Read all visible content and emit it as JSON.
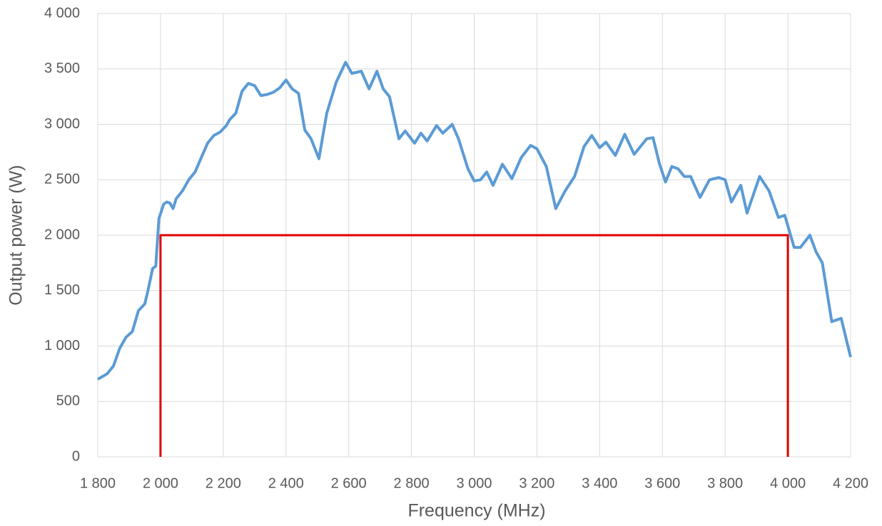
{
  "chart_data": {
    "type": "line",
    "xlabel": "Frequency (MHz)",
    "ylabel": "Output power (W)",
    "xlim": [
      1800,
      4200
    ],
    "xticks": [
      {
        "value": 1800,
        "label": "1 800"
      },
      {
        "value": 2000,
        "label": "2 000"
      },
      {
        "value": 2200,
        "label": "2 200"
      },
      {
        "value": 2400,
        "label": "2 400"
      },
      {
        "value": 2600,
        "label": "2 600"
      },
      {
        "value": 2800,
        "label": "2 800"
      },
      {
        "value": 3000,
        "label": "3 000"
      },
      {
        "value": 3200,
        "label": "3 200"
      },
      {
        "value": 3400,
        "label": "3 400"
      },
      {
        "value": 3600,
        "label": "3 600"
      },
      {
        "value": 3800,
        "label": "3 800"
      },
      {
        "value": 4000,
        "label": "4 000"
      },
      {
        "value": 4200,
        "label": "4 200"
      }
    ],
    "ylim": [
      0,
      4000
    ],
    "yticks": [
      0,
      500,
      {
        "value": 1000,
        "label": "1 000"
      },
      {
        "value": 1500,
        "label": "1 500"
      },
      {
        "value": 2000,
        "label": "2 000"
      },
      {
        "value": 2500,
        "label": "2 500"
      },
      {
        "value": 3000,
        "label": "3 000"
      },
      {
        "value": 3500,
        "label": "3 500"
      },
      {
        "value": 4000,
        "label": "4 000"
      }
    ],
    "grid": true,
    "series": [
      {
        "color": "#5b9bd5",
        "x": [
          1800,
          1830,
          1850,
          1870,
          1890,
          1910,
          1930,
          1950,
          1960,
          1975,
          1985,
          1995,
          2010,
          2020,
          2030,
          2040,
          2050,
          2070,
          2090,
          2110,
          2130,
          2150,
          2170,
          2190,
          2210,
          2220,
          2240,
          2260,
          2280,
          2300,
          2320,
          2340,
          2360,
          2380,
          2400,
          2420,
          2440,
          2460,
          2480,
          2505,
          2530,
          2560,
          2590,
          2610,
          2640,
          2665,
          2690,
          2710,
          2730,
          2760,
          2780,
          2810,
          2830,
          2850,
          2880,
          2900,
          2930,
          2950,
          2980,
          3000,
          3020,
          3040,
          3060,
          3090,
          3120,
          3150,
          3180,
          3200,
          3230,
          3260,
          3290,
          3320,
          3350,
          3375,
          3400,
          3420,
          3450,
          3480,
          3510,
          3550,
          3570,
          3590,
          3610,
          3630,
          3650,
          3670,
          3690,
          3720,
          3750,
          3780,
          3800,
          3820,
          3850,
          3870,
          3910,
          3940,
          3970,
          3990,
          4020,
          4040,
          4070,
          4090,
          4110,
          4140,
          4170,
          4200
        ],
        "values": [
          700,
          750,
          820,
          980,
          1080,
          1130,
          1320,
          1380,
          1500,
          1700,
          1720,
          2150,
          2280,
          2300,
          2290,
          2240,
          2330,
          2400,
          2500,
          2570,
          2700,
          2830,
          2900,
          2930,
          2990,
          3040,
          3100,
          3300,
          3370,
          3350,
          3260,
          3270,
          3290,
          3330,
          3400,
          3320,
          3280,
          2950,
          2870,
          2690,
          3100,
          3380,
          3560,
          3460,
          3480,
          3320,
          3480,
          3320,
          3250,
          2870,
          2940,
          2830,
          2920,
          2850,
          2990,
          2920,
          3000,
          2870,
          2600,
          2490,
          2500,
          2570,
          2450,
          2640,
          2510,
          2700,
          2810,
          2780,
          2620,
          2240,
          2400,
          2530,
          2800,
          2900,
          2790,
          2840,
          2720,
          2910,
          2730,
          2870,
          2880,
          2650,
          2480,
          2620,
          2600,
          2530,
          2530,
          2340,
          2500,
          2520,
          2500,
          2300,
          2450,
          2200,
          2530,
          2400,
          2160,
          2180,
          1890,
          1890,
          2000,
          1850,
          1750,
          1220,
          1250,
          900
        ]
      },
      {
        "color": "#e00000",
        "x": [
          2000,
          2000,
          4000,
          4000
        ],
        "values": [
          0,
          2000,
          2000,
          0
        ]
      }
    ]
  }
}
